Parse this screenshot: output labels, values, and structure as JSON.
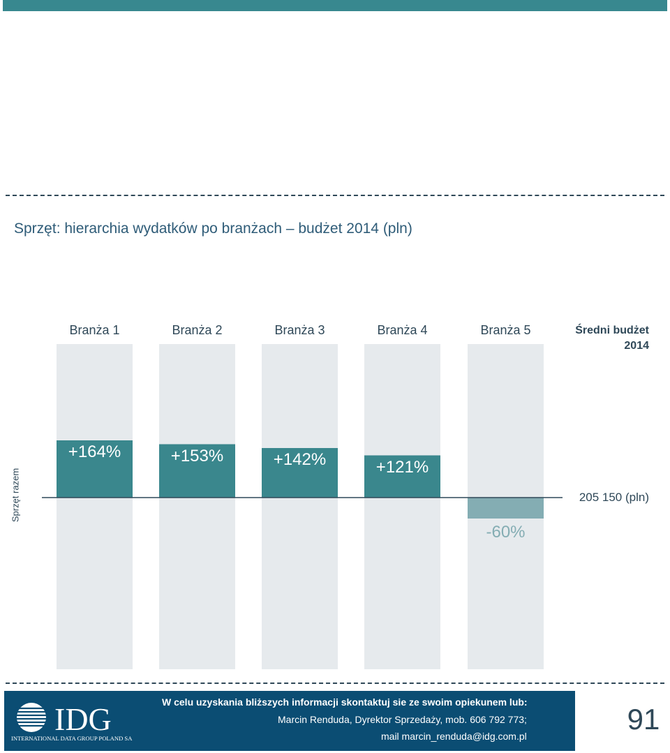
{
  "chart_data": {
    "type": "bar",
    "title": "Sprzęt: hierarchia wydatków po branżach – budżet 2014 (pln)",
    "categories": [
      "Branża 1",
      "Branża 2",
      "Branża 3",
      "Branża 4",
      "Branża 5"
    ],
    "values": [
      164,
      153,
      142,
      121,
      -60
    ],
    "value_labels": [
      "+164%",
      "+153%",
      "+142%",
      "+121%",
      "-60%"
    ],
    "row_label": "Sprzęt razem",
    "baseline_label": "Średni budżet 2014",
    "baseline_value": "205 150 (pln)",
    "colors": {
      "positive": "#3a878d",
      "negative": "#84adb3",
      "background_column": "#e6eaed"
    }
  },
  "footer": {
    "logo_text": "IDG",
    "logo_subtext": "INTERNATIONAL DATA GROUP POLAND SA",
    "line1": "W celu uzyskania bliższych informacji skontaktuj sie ze swoim opiekunem lub:",
    "line2": "Marcin Renduda, Dyrektor Sprzedaży, mob. 606 792 773;",
    "line3": "mail marcin_renduda@idg.com.pl"
  },
  "page_number": "91"
}
